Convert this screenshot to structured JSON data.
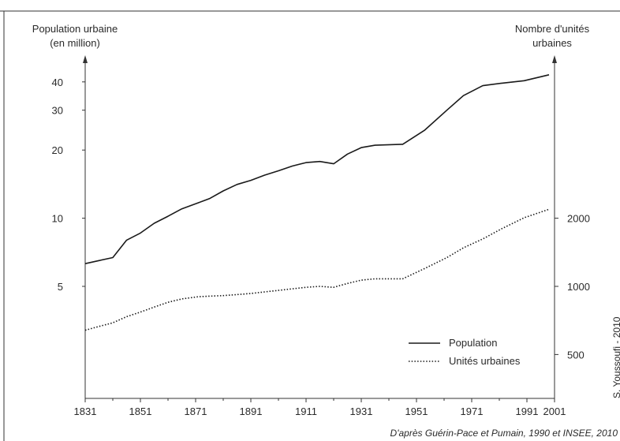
{
  "chart_data": {
    "type": "line",
    "left_axis_label": [
      "Population urbaine",
      "(en million)"
    ],
    "right_axis_label": [
      "Nombre d'unités",
      "urbaines"
    ],
    "x_ticks": [
      "1831",
      "1851",
      "1871",
      "1891",
      "1911",
      "1931",
      "1951",
      "1971",
      "1991",
      "2001"
    ],
    "left_scale": "log",
    "left_ticks": [
      {
        "value": 40,
        "label": "40"
      },
      {
        "value": 30,
        "label": "30"
      },
      {
        "value": 20,
        "label": "20"
      },
      {
        "value": 10,
        "label": "10"
      },
      {
        "value": 5,
        "label": "5"
      }
    ],
    "right_scale": "log",
    "right_ticks": [
      {
        "value": 2000,
        "label": "2000"
      },
      {
        "value": 1000,
        "label": "1000"
      },
      {
        "value": 500,
        "label": "500"
      }
    ],
    "xlim": [
      1831,
      2001
    ],
    "left_ylim": [
      1.6,
      50
    ],
    "right_ylim": [
      320,
      10000
    ],
    "series": [
      {
        "name": "Population",
        "axis": "left",
        "style": "solid",
        "points": [
          [
            1831,
            6.3
          ],
          [
            1836,
            6.5
          ],
          [
            1841,
            6.7
          ],
          [
            1846,
            8.0
          ],
          [
            1851,
            8.6
          ],
          [
            1856,
            9.5
          ],
          [
            1861,
            10.2
          ],
          [
            1866,
            11.0
          ],
          [
            1872,
            11.7
          ],
          [
            1876,
            12.2
          ],
          [
            1881,
            13.2
          ],
          [
            1886,
            14.1
          ],
          [
            1891,
            14.7
          ],
          [
            1896,
            15.5
          ],
          [
            1901,
            16.2
          ],
          [
            1906,
            17.0
          ],
          [
            1911,
            17.6
          ],
          [
            1916,
            17.8
          ],
          [
            1921,
            17.4
          ],
          [
            1926,
            19.2
          ],
          [
            1931,
            20.5
          ],
          [
            1936,
            21.0
          ],
          [
            1946,
            21.2
          ],
          [
            1954,
            24.5
          ],
          [
            1962,
            30.0
          ],
          [
            1968,
            34.8
          ],
          [
            1975,
            38.5
          ],
          [
            1982,
            39.5
          ],
          [
            1990,
            40.5
          ],
          [
            1999,
            43.0
          ]
        ]
      },
      {
        "name": "Unités urbaines",
        "axis": "right",
        "style": "dotted",
        "points": [
          [
            1831,
            640
          ],
          [
            1836,
            665
          ],
          [
            1841,
            690
          ],
          [
            1846,
            735
          ],
          [
            1851,
            770
          ],
          [
            1856,
            810
          ],
          [
            1861,
            850
          ],
          [
            1866,
            880
          ],
          [
            1872,
            900
          ],
          [
            1876,
            905
          ],
          [
            1881,
            910
          ],
          [
            1886,
            920
          ],
          [
            1891,
            930
          ],
          [
            1896,
            945
          ],
          [
            1901,
            960
          ],
          [
            1906,
            975
          ],
          [
            1911,
            990
          ],
          [
            1916,
            1000
          ],
          [
            1921,
            990
          ],
          [
            1926,
            1030
          ],
          [
            1931,
            1065
          ],
          [
            1936,
            1080
          ],
          [
            1946,
            1080
          ],
          [
            1954,
            1200
          ],
          [
            1962,
            1340
          ],
          [
            1968,
            1480
          ],
          [
            1975,
            1620
          ],
          [
            1982,
            1800
          ],
          [
            1990,
            2010
          ],
          [
            1999,
            2190
          ]
        ]
      }
    ],
    "legend_position": "bottom-right",
    "grid": false
  },
  "credit": "D'après Guérin-Pace et Pumain, 1990 et INSEE, 2010",
  "side_credit": "S. Youssoufi - 2010"
}
